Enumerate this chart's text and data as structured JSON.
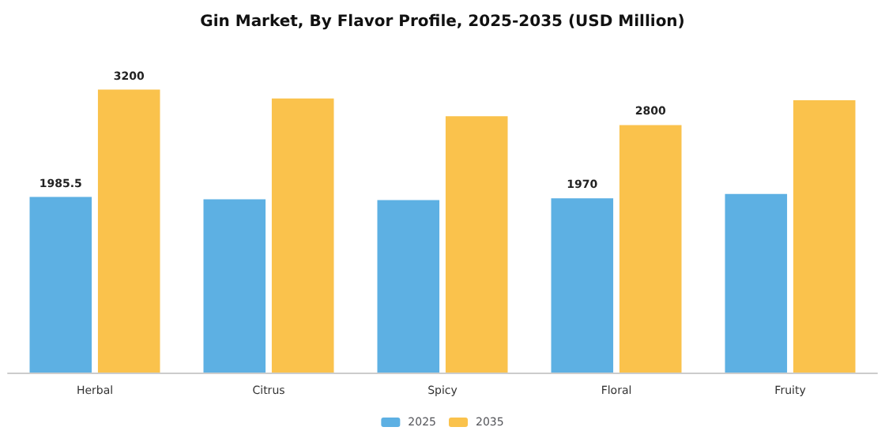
{
  "chart_data": {
    "type": "bar",
    "title": "Gin Market, By Flavor Profile, 2025-2035 (USD Million)",
    "categories": [
      "Herbal",
      "Citrus",
      "Spicy",
      "Floral",
      "Fruity"
    ],
    "series": [
      {
        "name": "2025",
        "color": "#5db0e3",
        "values": [
          1985.5,
          1960,
          1950,
          1970,
          2020
        ],
        "value_labels": [
          "1985.5",
          null,
          null,
          "1970",
          null
        ]
      },
      {
        "name": "2035",
        "color": "#fac24c",
        "values": [
          3200,
          3100,
          2900,
          2800,
          3080
        ],
        "value_labels": [
          "3200",
          null,
          null,
          "2800",
          null
        ]
      }
    ],
    "tick_labels": "x",
    "legend": "bottom"
  }
}
